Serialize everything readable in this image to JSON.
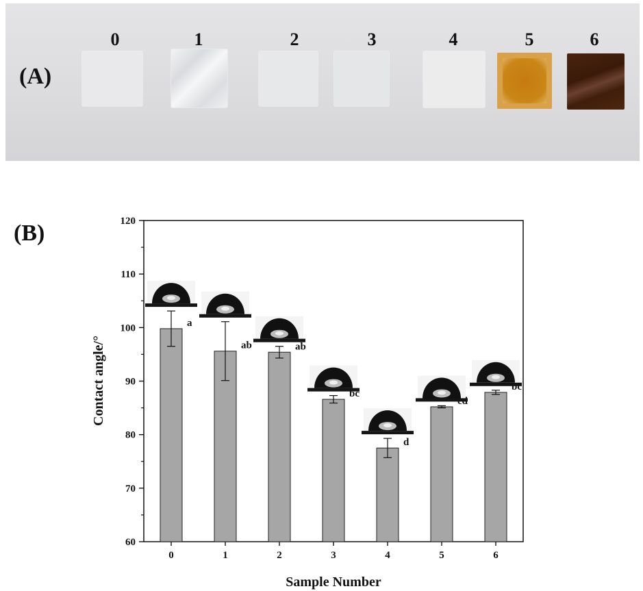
{
  "panel_a": {
    "label": "(A)",
    "samples": [
      {
        "label": "0",
        "color": "#e9e9ec"
      },
      {
        "label": "1",
        "color": "#eceef1"
      },
      {
        "label": "2",
        "color": "#e7e8ea"
      },
      {
        "label": "3",
        "color": "#e5e6e8"
      },
      {
        "label": "4",
        "color": "#ececec"
      },
      {
        "label": "5",
        "color": "#c8891f"
      },
      {
        "label": "6",
        "color": "#4a220c"
      }
    ]
  },
  "panel_b": {
    "label": "(B)"
  },
  "chart_data": {
    "type": "bar",
    "categories": [
      "0",
      "1",
      "2",
      "3",
      "4",
      "5",
      "6"
    ],
    "values": [
      99.8,
      95.6,
      95.4,
      86.6,
      77.5,
      85.2,
      87.9
    ],
    "errors": [
      3.3,
      5.5,
      1.1,
      0.7,
      1.8,
      0.2,
      0.4
    ],
    "significance": [
      "a",
      "ab",
      "ab",
      "bc",
      "d",
      "cd",
      "bc"
    ],
    "xlabel": "Sample Number",
    "ylabel": "Contact angle/°",
    "ylim": [
      60,
      120
    ],
    "yticks": [
      60,
      70,
      80,
      90,
      100,
      110,
      120
    ],
    "bar_color": "#a6a6a6",
    "grid": false,
    "droplet_image_per_bar": true
  }
}
